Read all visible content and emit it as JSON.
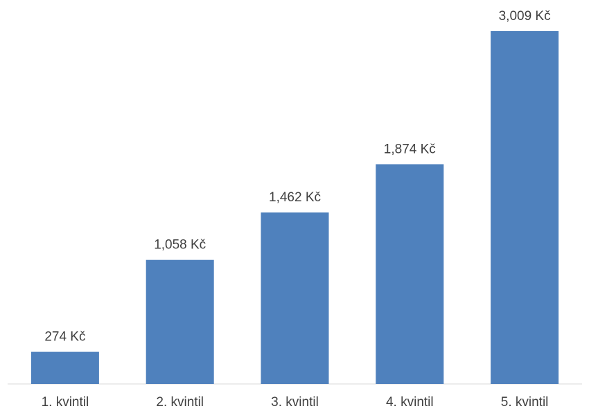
{
  "chart_data": {
    "type": "bar",
    "categories": [
      "1. kvintil",
      "2. kvintil",
      "3. kvintil",
      "4. kvintil",
      "5. kvintil"
    ],
    "values": [
      274,
      1058,
      1462,
      1874,
      3009
    ],
    "data_labels": [
      "274 Kč",
      "1,058 Kč",
      "1,462 Kč",
      "1,874 Kč",
      "3,009 Kč"
    ],
    "title": "",
    "xlabel": "",
    "ylabel": "",
    "ylim": [
      0,
      3009
    ],
    "grid": false,
    "legend": "none",
    "colors": {
      "bar": "#4f81bd",
      "axis": "#d9d9d9",
      "text": "#404040"
    }
  }
}
